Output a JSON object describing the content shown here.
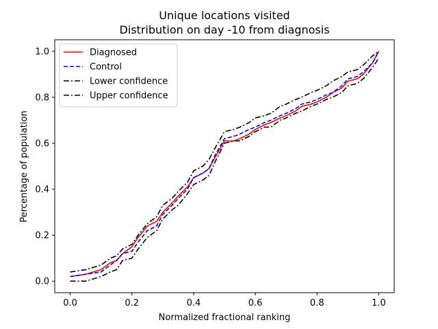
{
  "chart_data": {
    "type": "line",
    "title": "Unique locations visited",
    "subtitle": "Distribution on day -10 from diagnosis",
    "xlabel": "Normalized fractional ranking",
    "ylabel": "Percentage of population",
    "xlim": [
      -0.05,
      1.05
    ],
    "ylim": [
      -0.05,
      1.05
    ],
    "xticks": [
      0.0,
      0.2,
      0.4,
      0.6,
      0.8,
      1.0
    ],
    "yticks": [
      0.0,
      0.2,
      0.4,
      0.6,
      0.8,
      1.0
    ],
    "xtick_labels": [
      "0.0",
      "0.2",
      "0.4",
      "0.6",
      "0.8",
      "1.0"
    ],
    "ytick_labels": [
      "0.0",
      "0.2",
      "0.4",
      "0.6",
      "0.8",
      "1.0"
    ],
    "grid": false,
    "legend_position": "top-left",
    "x": [
      0.0,
      0.05,
      0.1,
      0.13,
      0.15,
      0.17,
      0.2,
      0.22,
      0.25,
      0.28,
      0.3,
      0.33,
      0.35,
      0.38,
      0.4,
      0.43,
      0.45,
      0.47,
      0.5,
      0.53,
      0.55,
      0.58,
      0.6,
      0.63,
      0.65,
      0.68,
      0.7,
      0.73,
      0.75,
      0.78,
      0.8,
      0.83,
      0.85,
      0.88,
      0.9,
      0.93,
      0.95,
      0.98,
      1.0
    ],
    "series": [
      {
        "name": "Diagnosed",
        "color": "#ff0000",
        "dash": "solid",
        "values": [
          0.02,
          0.03,
          0.05,
          0.08,
          0.09,
          0.12,
          0.15,
          0.19,
          0.24,
          0.26,
          0.3,
          0.34,
          0.37,
          0.41,
          0.45,
          0.47,
          0.49,
          0.54,
          0.61,
          0.61,
          0.62,
          0.64,
          0.66,
          0.68,
          0.69,
          0.71,
          0.72,
          0.74,
          0.76,
          0.77,
          0.78,
          0.8,
          0.82,
          0.84,
          0.87,
          0.88,
          0.9,
          0.95,
          1.0
        ]
      },
      {
        "name": "Control",
        "color": "#0000ff",
        "dash": "dashed",
        "values": [
          0.02,
          0.03,
          0.04,
          0.07,
          0.09,
          0.12,
          0.13,
          0.17,
          0.22,
          0.24,
          0.29,
          0.33,
          0.36,
          0.4,
          0.45,
          0.47,
          0.49,
          0.55,
          0.62,
          0.63,
          0.64,
          0.66,
          0.67,
          0.69,
          0.7,
          0.72,
          0.73,
          0.75,
          0.77,
          0.78,
          0.79,
          0.81,
          0.82,
          0.85,
          0.88,
          0.89,
          0.91,
          0.95,
          1.0
        ]
      },
      {
        "name": "Lower confidence",
        "color": "#000000",
        "dash": "dashdot",
        "values": [
          0.0,
          0.0,
          0.02,
          0.04,
          0.05,
          0.09,
          0.1,
          0.14,
          0.19,
          0.22,
          0.27,
          0.31,
          0.33,
          0.38,
          0.42,
          0.44,
          0.46,
          0.52,
          0.6,
          0.61,
          0.61,
          0.63,
          0.65,
          0.67,
          0.67,
          0.7,
          0.71,
          0.73,
          0.74,
          0.76,
          0.77,
          0.79,
          0.8,
          0.82,
          0.85,
          0.86,
          0.88,
          0.93,
          0.97
        ]
      },
      {
        "name": "Upper confidence",
        "color": "#000000",
        "dash": "dashdot",
        "values": [
          0.04,
          0.05,
          0.07,
          0.1,
          0.11,
          0.14,
          0.16,
          0.2,
          0.25,
          0.28,
          0.33,
          0.36,
          0.39,
          0.43,
          0.48,
          0.5,
          0.53,
          0.58,
          0.65,
          0.66,
          0.67,
          0.69,
          0.71,
          0.72,
          0.73,
          0.76,
          0.77,
          0.79,
          0.8,
          0.82,
          0.83,
          0.85,
          0.87,
          0.89,
          0.91,
          0.92,
          0.94,
          0.98,
          1.0
        ]
      }
    ]
  }
}
